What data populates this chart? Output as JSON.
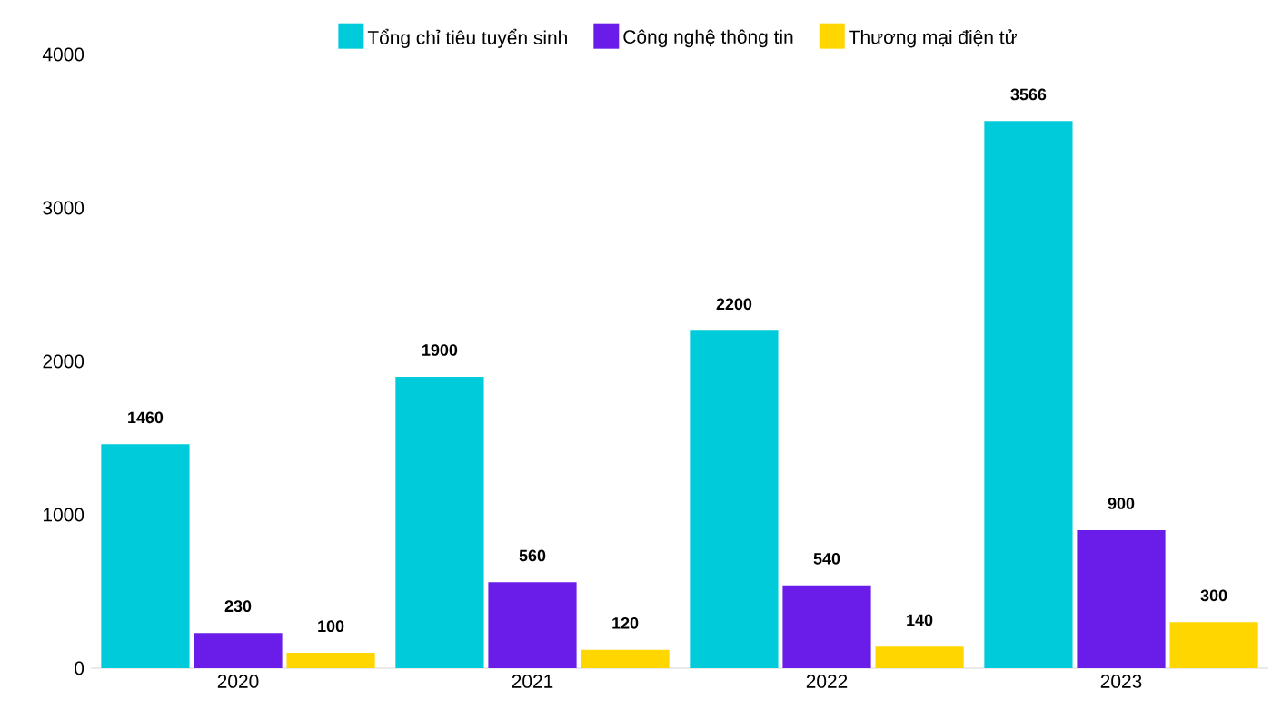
{
  "chart_data": {
    "type": "bar",
    "categories": [
      "2020",
      "2021",
      "2022",
      "2023"
    ],
    "series": [
      {
        "name": "Tổng chỉ tiêu tuyển sinh",
        "color": "#00cbdb",
        "values": [
          1460,
          1900,
          2200,
          3566
        ]
      },
      {
        "name": "Công nghệ thông tin",
        "color": "#6a1de8",
        "values": [
          230,
          560,
          540,
          900
        ]
      },
      {
        "name": "Thương mại điện tử",
        "color": "#ffd600",
        "values": [
          100,
          120,
          140,
          300
        ]
      }
    ],
    "ylim": [
      0,
      4000
    ],
    "yticks": [
      0,
      1000,
      2000,
      3000,
      4000
    ],
    "data_labels": true,
    "legend": "top",
    "grid": false
  }
}
